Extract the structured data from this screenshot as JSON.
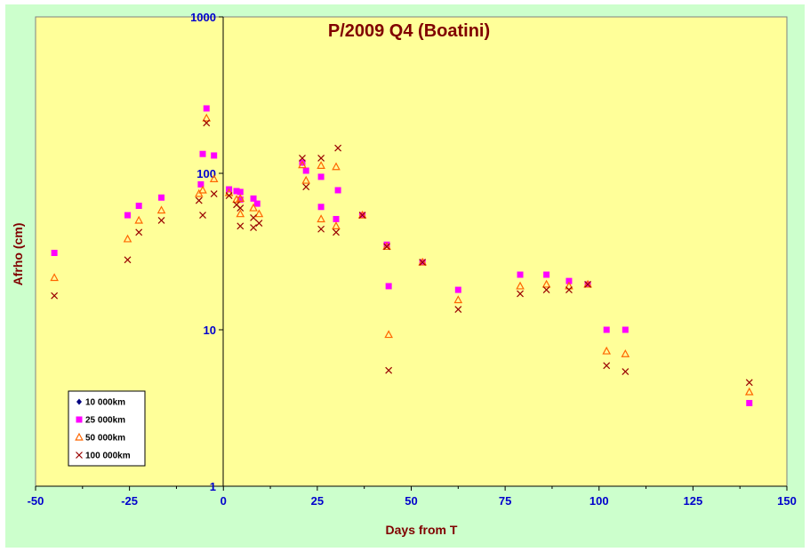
{
  "colors": {
    "outer_bg": "#ccffcc",
    "plot_bg": "#ffff99",
    "title": "#800000",
    "axis_label": "#800000",
    "tick_label": "#0000cc",
    "s10000": "#000080",
    "s25000": "#ff00ff",
    "s50000": "#ff6600",
    "s100000": "#990000"
  },
  "chart_data": {
    "type": "scatter",
    "title": "P/2009 Q4 (Boatini)",
    "xlabel": "Days from T",
    "ylabel": "Afrho (cm)",
    "xlim": [
      -50,
      150
    ],
    "ylim": [
      1,
      1000
    ],
    "y_scale": "log",
    "x_ticks": [
      -50,
      -25,
      0,
      25,
      50,
      75,
      100,
      125,
      150
    ],
    "x_tick_labels": [
      "-50",
      "-25",
      "0",
      "25",
      "50",
      "75",
      "100",
      "125",
      "150"
    ],
    "y_ticks": [
      1,
      10,
      100,
      1000
    ],
    "y_tick_labels": [
      "1",
      "10",
      "100",
      "1000"
    ],
    "grid": false,
    "legend_position": "bottom-left",
    "series": [
      {
        "name": "10 000km",
        "marker": "diamond",
        "points": []
      },
      {
        "name": "25 000km",
        "marker": "square",
        "points": [
          [
            -45,
            31
          ],
          [
            -25.5,
            54
          ],
          [
            -22.5,
            62
          ],
          [
            -16.5,
            70
          ],
          [
            -6,
            85
          ],
          [
            -5.5,
            133
          ],
          [
            -4.5,
            260
          ],
          [
            -2.5,
            130
          ],
          [
            1.5,
            79
          ],
          [
            3.5,
            77
          ],
          [
            4.5,
            76
          ],
          [
            4.5,
            68
          ],
          [
            8,
            69
          ],
          [
            9,
            64
          ],
          [
            21,
            117
          ],
          [
            22,
            104
          ],
          [
            26,
            61
          ],
          [
            26,
            95
          ],
          [
            30,
            51
          ],
          [
            30.5,
            78
          ],
          [
            37,
            54
          ],
          [
            43.5,
            35
          ],
          [
            44,
            19
          ],
          [
            53,
            27
          ],
          [
            62.5,
            18
          ],
          [
            79,
            22.5
          ],
          [
            86,
            22.5
          ],
          [
            92,
            20.5
          ],
          [
            97,
            19.5
          ],
          [
            102,
            10
          ],
          [
            107,
            10
          ],
          [
            140,
            3.4
          ]
        ]
      },
      {
        "name": "50 000km",
        "marker": "triangle",
        "points": [
          [
            -45,
            21.5
          ],
          [
            -25.5,
            38
          ],
          [
            -22.5,
            50
          ],
          [
            -16.5,
            58
          ],
          [
            -6.5,
            74
          ],
          [
            -5.5,
            78
          ],
          [
            -4.5,
            225
          ],
          [
            -2.5,
            92
          ],
          [
            1.5,
            75
          ],
          [
            3.5,
            68
          ],
          [
            4.5,
            69
          ],
          [
            4.5,
            55
          ],
          [
            8,
            60
          ],
          [
            9.5,
            55
          ],
          [
            21,
            113
          ],
          [
            22,
            90
          ],
          [
            26,
            51
          ],
          [
            26,
            112
          ],
          [
            30,
            46
          ],
          [
            30,
            110
          ],
          [
            37,
            54
          ],
          [
            43.5,
            34
          ],
          [
            44,
            9.3
          ],
          [
            53,
            27
          ],
          [
            62.5,
            15.5
          ],
          [
            79,
            19
          ],
          [
            86,
            19.5
          ],
          [
            92,
            19
          ],
          [
            97,
            19.5
          ],
          [
            102,
            7.3
          ],
          [
            107,
            7
          ],
          [
            140,
            4
          ]
        ]
      },
      {
        "name": "100 000km",
        "marker": "x",
        "points": [
          [
            -45,
            16.5
          ],
          [
            -25.5,
            28
          ],
          [
            -22.5,
            42
          ],
          [
            -16.5,
            50
          ],
          [
            -6.5,
            67
          ],
          [
            -5.5,
            54
          ],
          [
            -4.5,
            210
          ],
          [
            -2.5,
            74
          ],
          [
            1.5,
            72
          ],
          [
            3.5,
            63
          ],
          [
            4.5,
            60
          ],
          [
            4.5,
            46
          ],
          [
            8,
            45
          ],
          [
            8,
            52
          ],
          [
            9.5,
            48
          ],
          [
            21,
            125
          ],
          [
            22,
            82
          ],
          [
            26,
            44
          ],
          [
            26,
            125
          ],
          [
            30,
            42
          ],
          [
            30.5,
            145
          ],
          [
            37,
            54
          ],
          [
            43.5,
            34
          ],
          [
            44,
            5.5
          ],
          [
            53,
            27
          ],
          [
            62.5,
            13.5
          ],
          [
            79,
            17
          ],
          [
            86,
            18
          ],
          [
            92,
            18
          ],
          [
            97,
            19.5
          ],
          [
            102,
            5.9
          ],
          [
            107,
            5.4
          ],
          [
            140,
            4.6
          ]
        ]
      }
    ]
  }
}
